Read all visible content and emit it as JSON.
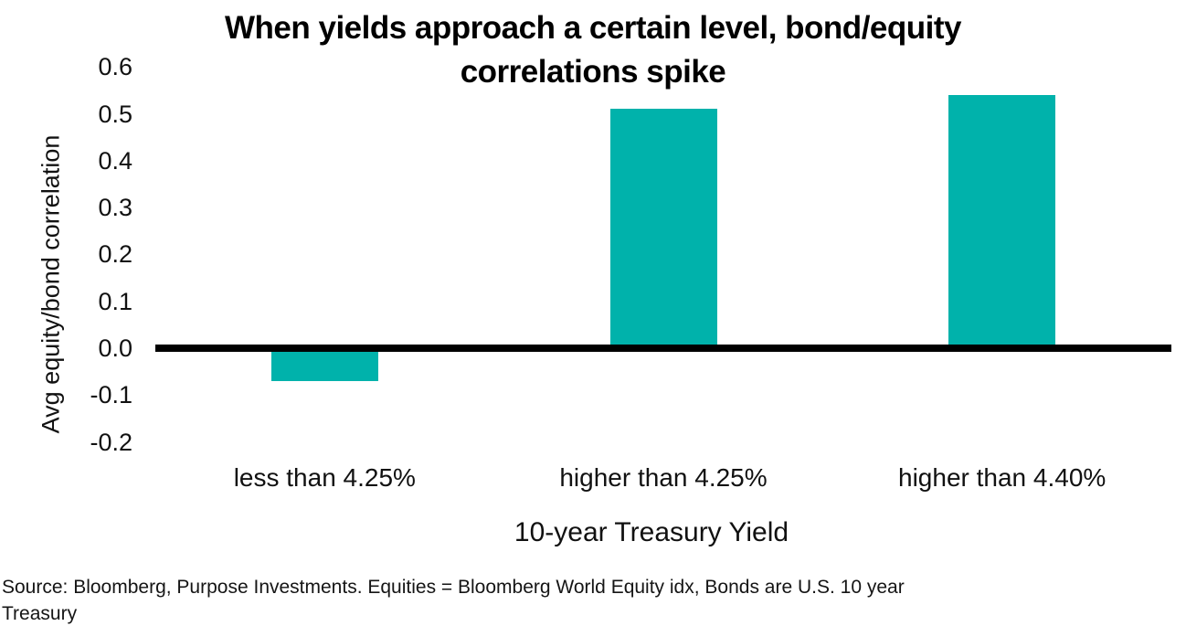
{
  "title": {
    "line1": "When yields approach a certain level, bond/equity",
    "line2": "correlations spike"
  },
  "footer": {
    "line1": "Source: Bloomberg, Purpose Investments. Equities = Bloomberg World Equity idx, Bonds are U.S. 10 year",
    "line2": "Treasury"
  },
  "chart_data": {
    "type": "bar",
    "title": "When yields approach a certain level, bond/equity correlations spike",
    "categories": [
      "less than 4.25%",
      "higher than 4.25%",
      "higher than 4.40%"
    ],
    "values": [
      -0.07,
      0.51,
      0.54
    ],
    "xlabel": "10-year Treasury Yield",
    "ylabel": "Avg equity/bond correlation",
    "yticks": [
      0.6,
      0.5,
      0.4,
      0.3,
      0.2,
      0.1,
      0.0,
      -0.1,
      -0.2
    ],
    "ylim": [
      -0.25,
      0.65
    ],
    "grid": false,
    "legend": false,
    "bar_color": "#00b2ab",
    "zero_line_color": "#000000",
    "source": "Source: Bloomberg, Purpose Investments. Equities = Bloomberg World Equity idx, Bonds are U.S. 10 year Treasury"
  }
}
